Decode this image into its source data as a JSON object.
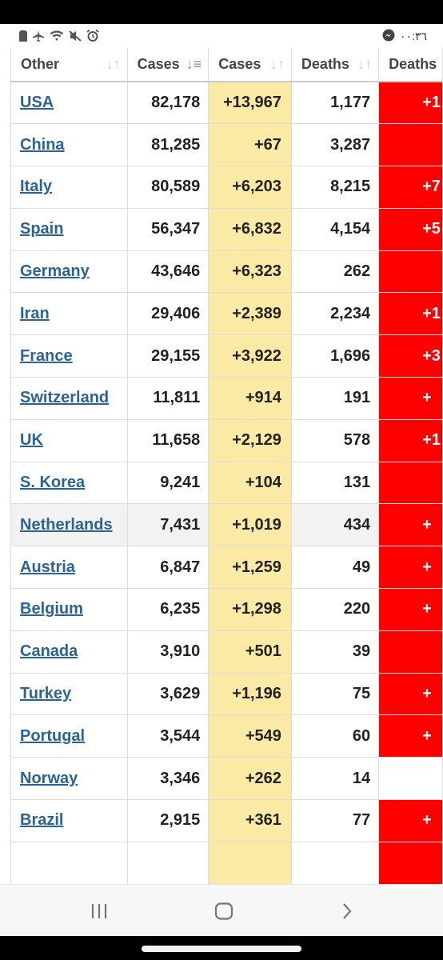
{
  "statusbar": {
    "icons": [
      "sd-card-icon",
      "airplane-icon",
      "wifi-icon",
      "mute-icon",
      "alarm-icon"
    ],
    "right_icon": "messenger-icon",
    "time": "٠٠:٣٦"
  },
  "table": {
    "headers": [
      "Other",
      "Cases",
      "Cases",
      "Deaths",
      "Deaths"
    ],
    "rows": [
      {
        "country": "USA",
        "total_cases": "82,178",
        "new_cases": "+13,967",
        "total_deaths": "1,177",
        "new_deaths": "+1"
      },
      {
        "country": "China",
        "total_cases": "81,285",
        "new_cases": "+67",
        "total_deaths": "3,287",
        "new_deaths": ""
      },
      {
        "country": "Italy",
        "total_cases": "80,589",
        "new_cases": "+6,203",
        "total_deaths": "8,215",
        "new_deaths": "+7"
      },
      {
        "country": "Spain",
        "total_cases": "56,347",
        "new_cases": "+6,832",
        "total_deaths": "4,154",
        "new_deaths": "+5"
      },
      {
        "country": "Germany",
        "total_cases": "43,646",
        "new_cases": "+6,323",
        "total_deaths": "262",
        "new_deaths": ""
      },
      {
        "country": "Iran",
        "total_cases": "29,406",
        "new_cases": "+2,389",
        "total_deaths": "2,234",
        "new_deaths": "+1"
      },
      {
        "country": "France",
        "total_cases": "29,155",
        "new_cases": "+3,922",
        "total_deaths": "1,696",
        "new_deaths": "+3"
      },
      {
        "country": "Switzerland",
        "total_cases": "11,811",
        "new_cases": "+914",
        "total_deaths": "191",
        "new_deaths": "+"
      },
      {
        "country": "UK",
        "total_cases": "11,658",
        "new_cases": "+2,129",
        "total_deaths": "578",
        "new_deaths": "+1"
      },
      {
        "country": "S. Korea",
        "total_cases": "9,241",
        "new_cases": "+104",
        "total_deaths": "131",
        "new_deaths": ""
      },
      {
        "country": "Netherlands",
        "total_cases": "7,431",
        "new_cases": "+1,019",
        "total_deaths": "434",
        "new_deaths": "+"
      },
      {
        "country": "Austria",
        "total_cases": "6,847",
        "new_cases": "+1,259",
        "total_deaths": "49",
        "new_deaths": "+"
      },
      {
        "country": "Belgium",
        "total_cases": "6,235",
        "new_cases": "+1,298",
        "total_deaths": "220",
        "new_deaths": "+"
      },
      {
        "country": "Canada",
        "total_cases": "3,910",
        "new_cases": "+501",
        "total_deaths": "39",
        "new_deaths": ""
      },
      {
        "country": "Turkey",
        "total_cases": "3,629",
        "new_cases": "+1,196",
        "total_deaths": "75",
        "new_deaths": "+"
      },
      {
        "country": "Portugal",
        "total_cases": "3,544",
        "new_cases": "+549",
        "total_deaths": "60",
        "new_deaths": "+"
      },
      {
        "country": "Norway",
        "total_cases": "3,346",
        "new_cases": "+262",
        "total_deaths": "14",
        "new_deaths": ""
      },
      {
        "country": "Brazil",
        "total_cases": "2,915",
        "new_cases": "+361",
        "total_deaths": "77",
        "new_deaths": "+"
      }
    ],
    "highlighted_row": "Netherlands",
    "blank_new_deaths_row": "Norway"
  },
  "colors": {
    "new_cases_bg": "#fbeaa6",
    "new_deaths_bg": "#ff0000",
    "link": "#2a6496"
  },
  "navbar": {
    "recents": "recents-icon",
    "home": "home-icon",
    "back": "back-icon"
  }
}
